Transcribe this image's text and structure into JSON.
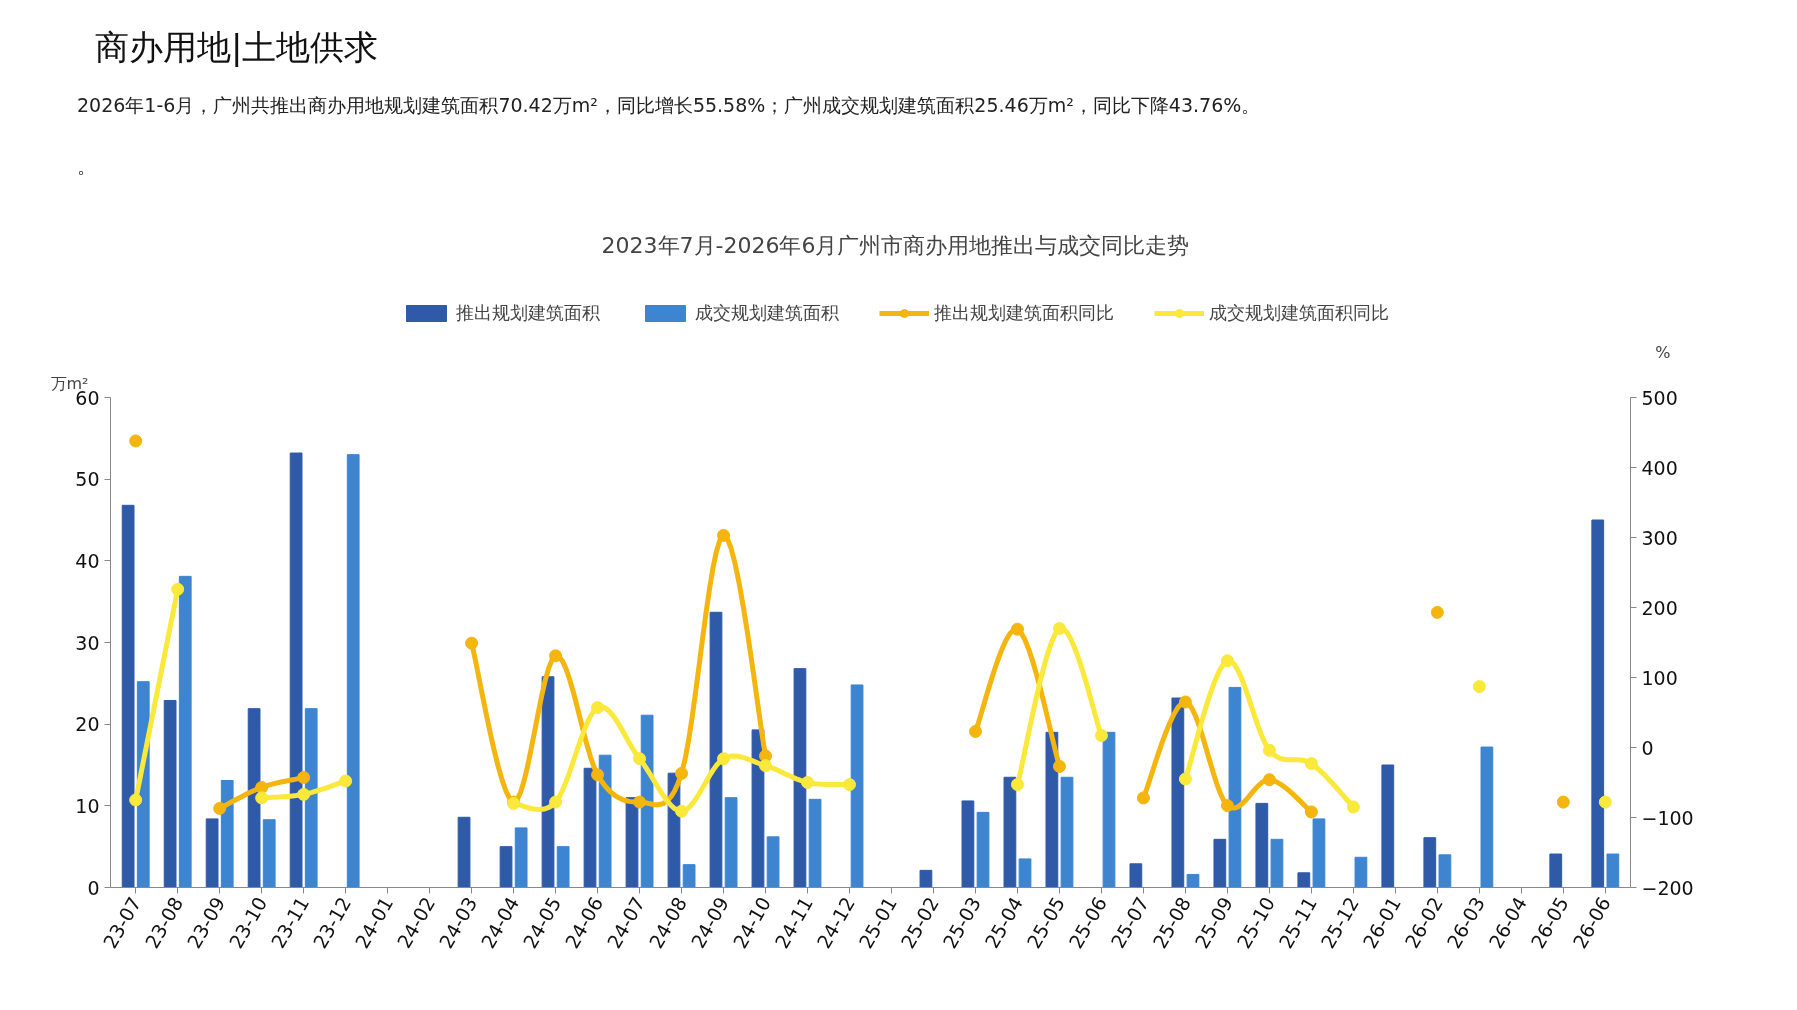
{
  "chart_data": {
    "type": "bar",
    "title": "2023年7月-2026年6月广州市商办用地推出与成交同比走势",
    "annotations": [
      "商办用地|土地供求",
      "2026年1-6月，广州共推出商办用地规划建筑面积70.42万m²，同比增长55.58%；广州成交规划建筑面积25.46万m²，同比下降43.76%。",
      "。"
    ],
    "ylabel": "万m²",
    "y2label": "%",
    "categories": [
      "23-07",
      "23-08",
      "23-09",
      "23-10",
      "23-11",
      "23-12",
      "24-01",
      "24-02",
      "24-03",
      "24-04",
      "24-05",
      "24-06",
      "24-07",
      "24-08",
      "24-09",
      "24-10",
      "24-11",
      "24-12",
      "25-01",
      "25-02",
      "25-03",
      "25-04",
      "25-05",
      "25-06",
      "25-07",
      "25-08",
      "25-09",
      "25-10",
      "25-11",
      "25-12",
      "26-01",
      "26-02",
      "26-03",
      "26-04",
      "26-05",
      "26-06"
    ],
    "series": [
      {
        "name": "推出规划建筑面积",
        "color": "#2e5aa8",
        "values": [
          46.8,
          22.9,
          8.4,
          21.9,
          53.2,
          0,
          0,
          0,
          8.6,
          5.0,
          25.8,
          14.6,
          11,
          14.0,
          33.7,
          19.3,
          26.8,
          0,
          0,
          2.1,
          10.6,
          13.5,
          19.0,
          0,
          2.9,
          23.2,
          5.9,
          10.3,
          1.8,
          0,
          15.0,
          6.1,
          0,
          0,
          4.1,
          45.0
        ]
      },
      {
        "name": "成交规划建筑面积",
        "color": "#3d85d0",
        "values": [
          25.2,
          38.1,
          13.1,
          8.3,
          21.9,
          53.0,
          0,
          0,
          0,
          7.3,
          5.0,
          16.2,
          21.1,
          2.8,
          11.0,
          6.2,
          10.8,
          24.8,
          0,
          0,
          9.2,
          3.5,
          13.5,
          19.0,
          0,
          1.6,
          24.5,
          5.9,
          8.4,
          3.7,
          0,
          4.0,
          17.2,
          0,
          0,
          4.1
        ]
      },
      {
        "name": "推出规划建筑面积同比",
        "type": "line",
        "axis": "y2",
        "color": "#f5b50f",
        "values": [
          438,
          null,
          -87,
          -57,
          -43,
          null,
          null,
          null,
          149,
          -78,
          131,
          -39,
          -78,
          -37,
          303,
          -12,
          null,
          null,
          null,
          null,
          23,
          169,
          -27,
          null,
          -72,
          65,
          -83,
          -46,
          -92,
          null,
          null,
          193,
          null,
          null,
          -78,
          null
        ]
      },
      {
        "name": "成交规划建筑面积同比",
        "type": "line",
        "axis": "y2",
        "color": "#fae83a",
        "values": [
          -75,
          226,
          null,
          -72,
          -67,
          -48,
          null,
          null,
          null,
          -80,
          -78,
          57,
          -16,
          -91,
          -16,
          -26,
          -50,
          -53,
          null,
          null,
          null,
          -53,
          170,
          17,
          null,
          -45,
          124,
          -4,
          -23,
          -85,
          null,
          null,
          87,
          null,
          null,
          -78
        ]
      }
    ],
    "ylim": [
      0,
      60
    ],
    "yticks": [
      0,
      10,
      20,
      30,
      40,
      50,
      60
    ],
    "y2lim": [
      -200,
      500
    ],
    "y2ticks": [
      -200,
      -100,
      0,
      100,
      200,
      300,
      400,
      500
    ],
    "legend": "top",
    "grid": false,
    "marker": "circle",
    "line_style": "solid"
  }
}
